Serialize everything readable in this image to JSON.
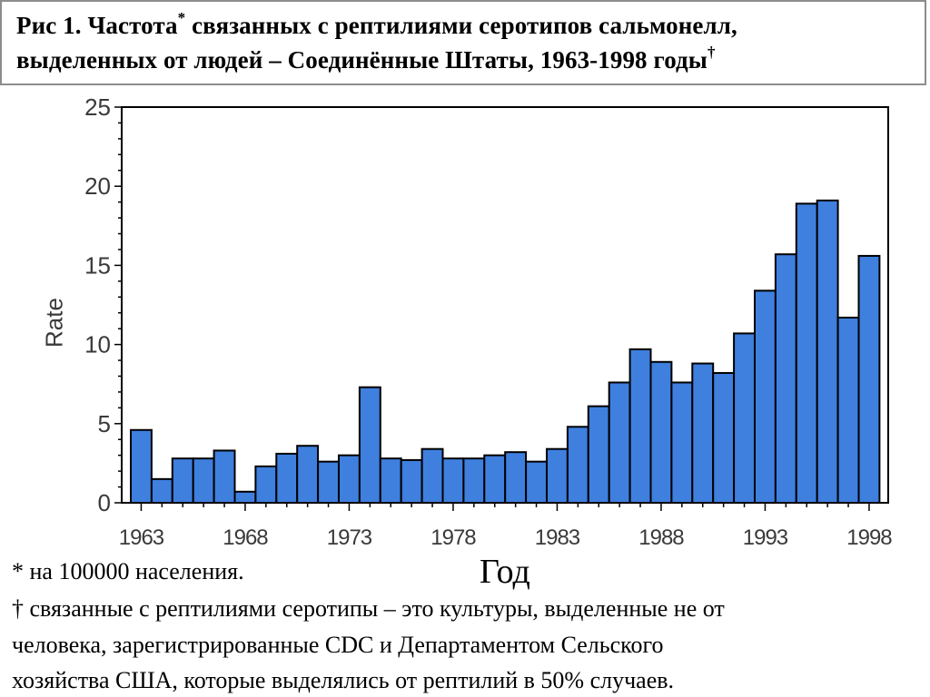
{
  "title": {
    "line1": "Рис 1. Частота",
    "line1_sup": "*",
    "line1_rest": " связанных с рептилиями серотипов сальмонелл,",
    "line2": "выделенных от людей – Соединённые Штаты, 1963-1998 годы",
    "line2_sup": "†"
  },
  "notes": {
    "per_population": "* на 100000 населения.",
    "definition_1": "† связанные с рептилиями серотипы – это культуры, выделенные не от",
    "definition_2": "человека, зарегистрированные CDC и Департаментом Сельского",
    "definition_3": "хозяйства США, которые выделялись от рептилий в 50% случаев."
  },
  "colors": {
    "bar": "#3f7fde",
    "bar_stroke": "#000000",
    "axis": "#000000",
    "tick_text": "#3a3a3a"
  },
  "chart_data": {
    "type": "bar",
    "title": "",
    "xlabel": "Год",
    "ylabel": "Rate",
    "ylim": [
      0,
      25
    ],
    "y_ticks": [
      "0",
      "5",
      "10",
      "15",
      "20",
      "25"
    ],
    "x_tick_labels": [
      "1963",
      "1968",
      "1973",
      "1978",
      "1983",
      "1988",
      "1993",
      "1998"
    ],
    "grid": false,
    "categories": [
      "1963",
      "1964",
      "1965",
      "1966",
      "1967",
      "1968",
      "1969",
      "1970",
      "1971",
      "1972",
      "1973",
      "1974",
      "1975",
      "1976",
      "1977",
      "1978",
      "1979",
      "1980",
      "1981",
      "1982",
      "1983",
      "1984",
      "1985",
      "1986",
      "1987",
      "1988",
      "1989",
      "1990",
      "1991",
      "1992",
      "1993",
      "1994",
      "1995",
      "1996",
      "1997",
      "1998"
    ],
    "values": [
      4.6,
      1.5,
      2.8,
      2.8,
      3.3,
      0.7,
      2.3,
      3.1,
      3.6,
      2.6,
      3.0,
      7.3,
      2.8,
      2.7,
      3.4,
      2.8,
      2.8,
      3.0,
      3.2,
      2.6,
      3.4,
      4.8,
      6.1,
      7.6,
      9.7,
      8.9,
      7.6,
      8.8,
      8.2,
      10.7,
      13.4,
      15.7,
      18.9,
      19.1,
      11.7,
      15.6
    ]
  }
}
